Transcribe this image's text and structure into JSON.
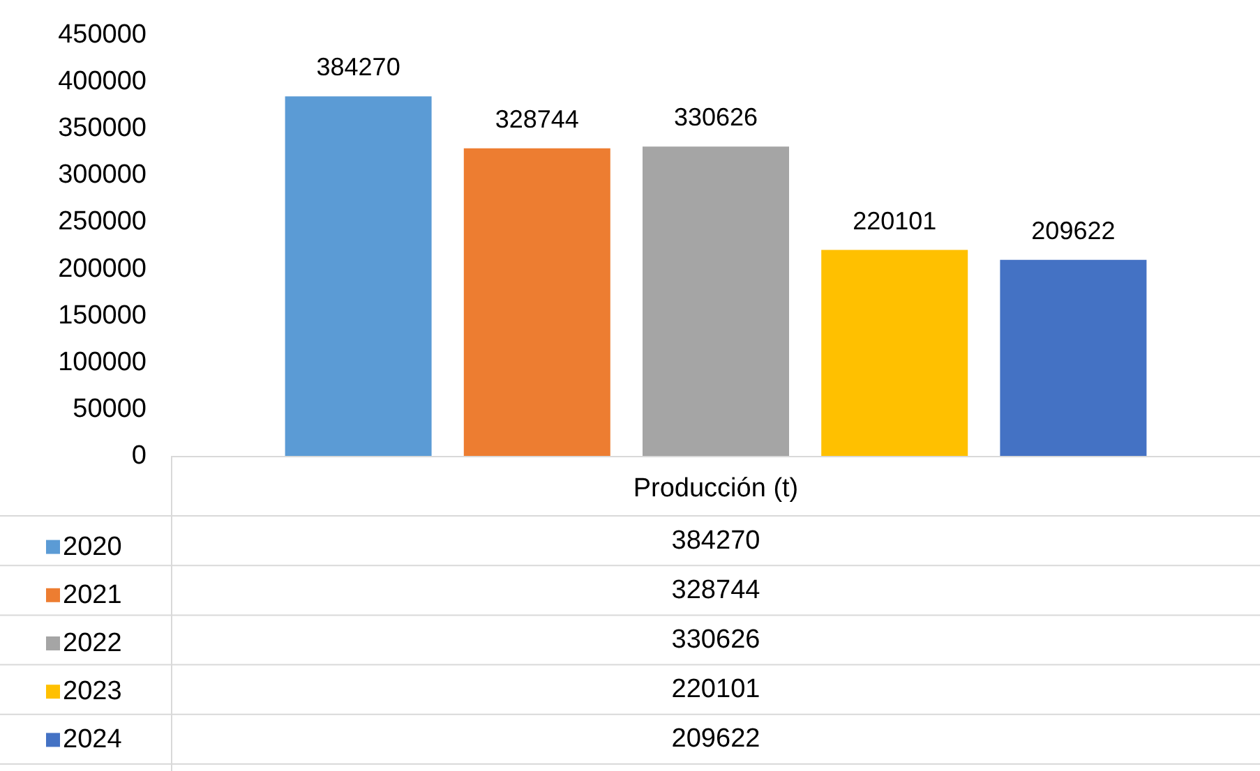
{
  "chart_data": {
    "type": "bar",
    "categories": [
      "Producción (t)"
    ],
    "series": [
      {
        "name": "2020",
        "color": "#5b9bd5",
        "values": [
          384270
        ],
        "value_labels": [
          "384270"
        ]
      },
      {
        "name": "2021",
        "color": "#ed7d31",
        "values": [
          328744
        ],
        "value_labels": [
          "328744"
        ]
      },
      {
        "name": "2022",
        "color": "#a5a5a5",
        "values": [
          330626
        ],
        "value_labels": [
          "330626"
        ]
      },
      {
        "name": "2023",
        "color": "#ffc000",
        "values": [
          220101
        ],
        "value_labels": [
          "220101"
        ]
      },
      {
        "name": "2024",
        "color": "#4472c4",
        "values": [
          209622
        ],
        "value_labels": [
          "209622"
        ]
      }
    ],
    "ylim": [
      0,
      450000
    ],
    "yticks": [
      0,
      50000,
      100000,
      150000,
      200000,
      250000,
      300000,
      350000,
      400000,
      450000
    ],
    "grid": false,
    "legend": "bottom"
  }
}
